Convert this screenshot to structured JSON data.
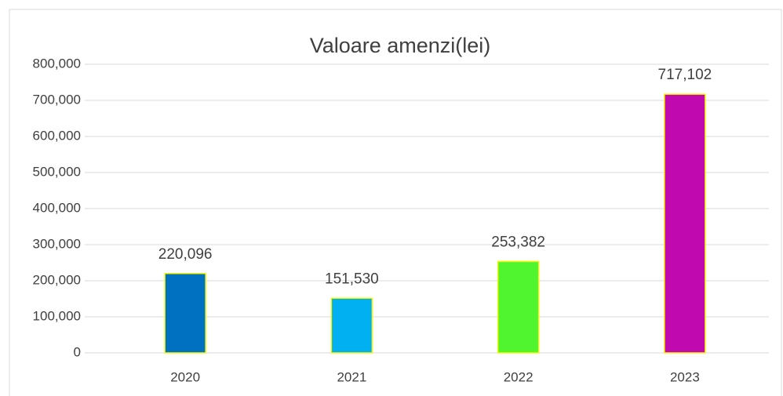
{
  "chart_data": {
    "type": "bar",
    "title": "Valoare amenzi(lei)",
    "categories": [
      "2020",
      "2021",
      "2022",
      "2023"
    ],
    "values": [
      220096,
      151530,
      253382,
      717102
    ],
    "value_labels": [
      "220,096",
      "151,530",
      "253,382",
      "717,102"
    ],
    "colors": [
      "#0070c0",
      "#00b0f0",
      "#50f530",
      "#c00ab0"
    ],
    "edgecolor": "#f5f500",
    "ylim": [
      0,
      800000
    ],
    "yticks": [
      0,
      {
        "value": 100000,
        "label": "100,000"
      },
      {
        "value": 200000,
        "label": "200,000"
      },
      {
        "value": 300000,
        "label": "300,000"
      },
      {
        "value": 400000,
        "label": "400,000"
      },
      {
        "value": 500000,
        "label": "500,000"
      },
      {
        "value": 600000,
        "label": "600,000"
      },
      {
        "value": 700000,
        "label": "700,000"
      },
      {
        "value": 800000,
        "label": "800,000"
      }
    ],
    "grid": true
  }
}
